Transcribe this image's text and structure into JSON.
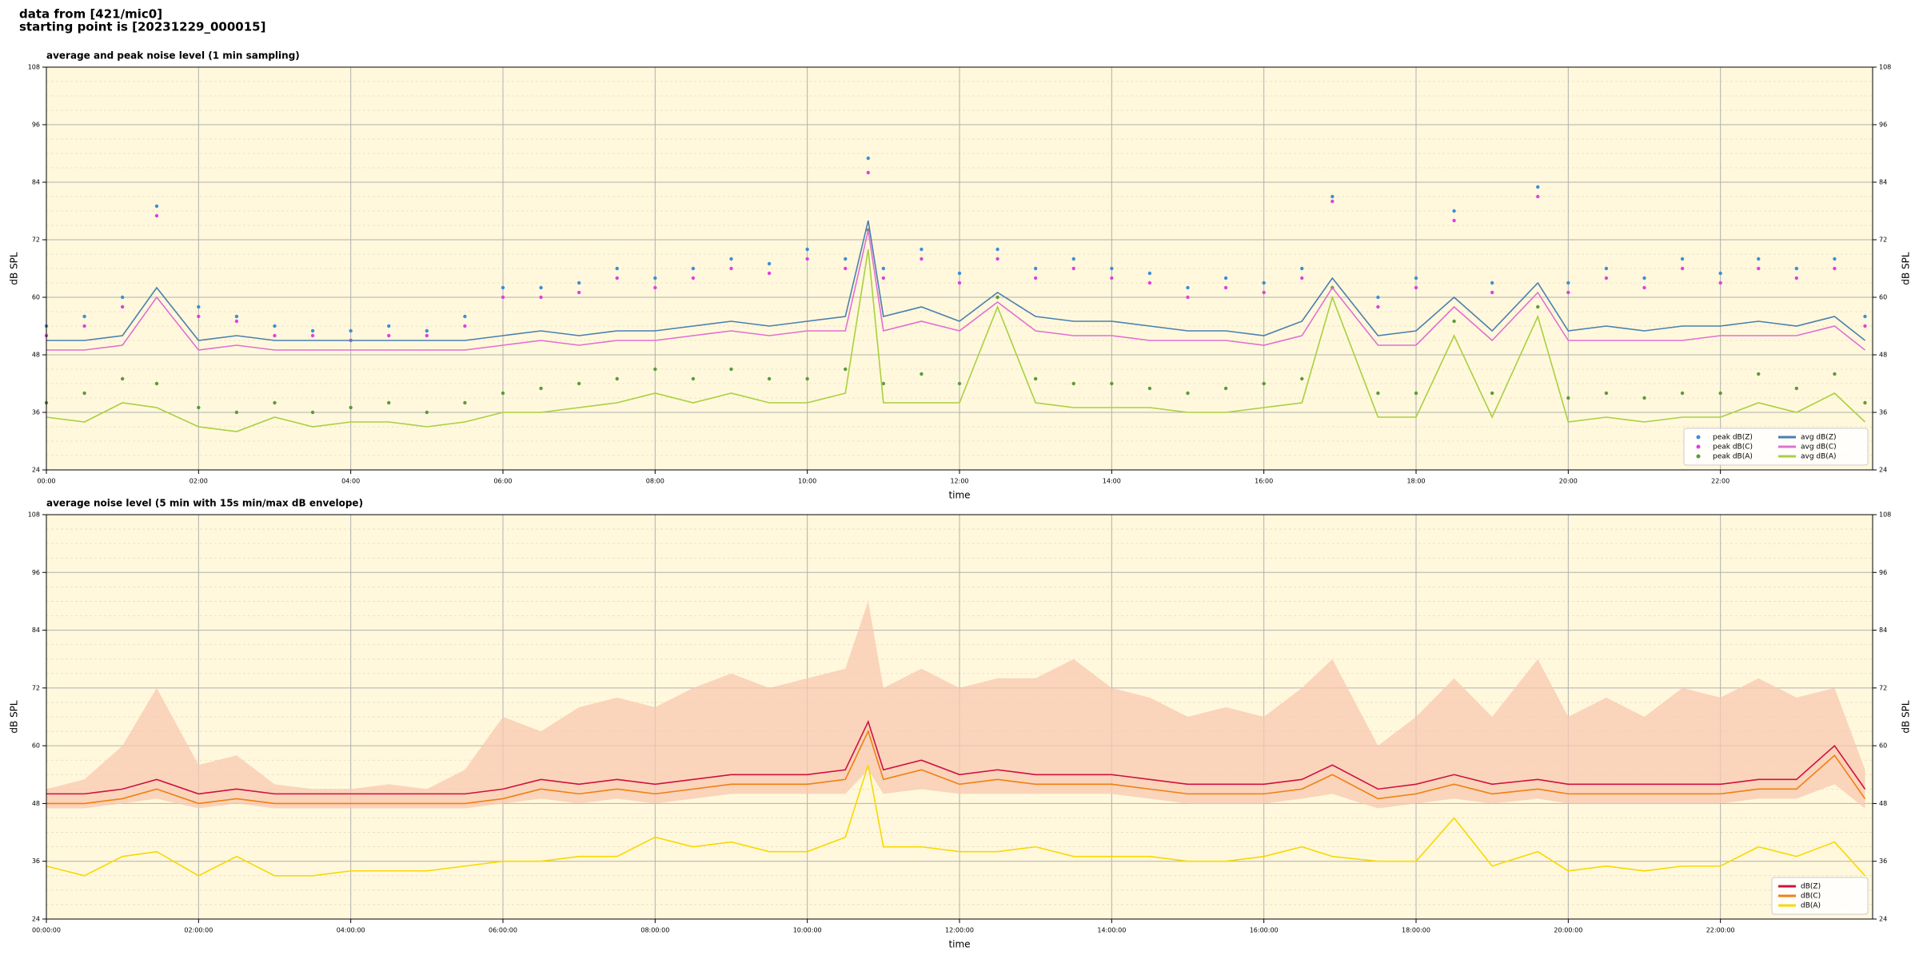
{
  "header": {
    "line1": "data from [421/mic0]",
    "line2": "starting point is [20231229_000015]"
  },
  "chart_data": [
    {
      "type": "line",
      "title": "average and peak noise level (1 min sampling)",
      "xlabel": "time",
      "ylabel": "dB SPL",
      "y2label": "dB SPL",
      "xlim": [
        0,
        24
      ],
      "ylim": [
        24,
        108
      ],
      "y2lim": [
        24,
        108
      ],
      "xticks": [
        {
          "value": 0,
          "label": "00:00"
        },
        {
          "value": 2,
          "label": "02:00"
        },
        {
          "value": 4,
          "label": "04:00"
        },
        {
          "value": 6,
          "label": "06:00"
        },
        {
          "value": 8,
          "label": "08:00"
        },
        {
          "value": 10,
          "label": "10:00"
        },
        {
          "value": 12,
          "label": "12:00"
        },
        {
          "value": 14,
          "label": "14:00"
        },
        {
          "value": 16,
          "label": "16:00"
        },
        {
          "value": 18,
          "label": "18:00"
        },
        {
          "value": 20,
          "label": "20:00"
        },
        {
          "value": 22,
          "label": "22:00"
        }
      ],
      "yticks": [
        24,
        36,
        48,
        60,
        72,
        84,
        96,
        108
      ],
      "y2ticks": [
        24,
        36,
        48,
        60,
        72,
        84,
        96,
        108
      ],
      "yminorticks": [
        27,
        30,
        33,
        39,
        42,
        45,
        51,
        54,
        57,
        63,
        66,
        69,
        75,
        78,
        81,
        87,
        90,
        93,
        99,
        102,
        105
      ],
      "grid": true,
      "legend": "lower right",
      "background": "#fff8dc",
      "x": [
        0,
        0.5,
        1,
        1.45,
        2,
        2.5,
        3,
        3.5,
        4,
        4.5,
        5,
        5.5,
        6,
        6.5,
        7,
        7.5,
        8,
        8.5,
        9,
        9.5,
        10,
        10.5,
        10.8,
        11,
        11.5,
        12,
        12.5,
        13,
        13.5,
        14,
        14.5,
        15,
        15.5,
        16,
        16.5,
        16.9,
        17.5,
        18,
        18.5,
        19,
        19.6,
        20,
        20.5,
        21,
        21.5,
        22,
        22.5,
        23,
        23.5,
        23.9
      ],
      "series": [
        {
          "name": "peak dB(Z)",
          "kind": "points",
          "color": "#3a8fd8",
          "values": [
            54,
            56,
            60,
            79,
            58,
            56,
            54,
            53,
            53,
            54,
            53,
            56,
            62,
            62,
            63,
            66,
            64,
            66,
            68,
            67,
            70,
            68,
            89,
            66,
            70,
            65,
            70,
            66,
            68,
            66,
            65,
            62,
            64,
            63,
            66,
            81,
            60,
            64,
            78,
            63,
            83,
            63,
            66,
            64,
            68,
            65,
            68,
            66,
            68,
            56
          ]
        },
        {
          "name": "peak dB(C)",
          "kind": "points",
          "color": "#e040e0",
          "values": [
            52,
            54,
            58,
            77,
            56,
            55,
            52,
            52,
            51,
            52,
            52,
            54,
            60,
            60,
            61,
            64,
            62,
            64,
            66,
            65,
            68,
            66,
            86,
            64,
            68,
            63,
            68,
            64,
            66,
            64,
            63,
            60,
            62,
            61,
            64,
            80,
            58,
            62,
            76,
            61,
            81,
            61,
            64,
            62,
            66,
            63,
            66,
            64,
            66,
            54
          ]
        },
        {
          "name": "peak dB(A)",
          "kind": "points",
          "color": "#5a9a3a",
          "values": [
            38,
            40,
            43,
            42,
            37,
            36,
            38,
            36,
            37,
            38,
            36,
            38,
            40,
            41,
            42,
            43,
            45,
            43,
            45,
            43,
            43,
            45,
            74,
            42,
            44,
            42,
            60,
            43,
            42,
            42,
            41,
            40,
            41,
            42,
            43,
            62,
            40,
            40,
            55,
            40,
            58,
            39,
            40,
            39,
            40,
            40,
            44,
            41,
            44,
            38
          ]
        },
        {
          "name": "avg dB(Z)",
          "kind": "line",
          "color": "#4a7fb0",
          "values": [
            51,
            51,
            52,
            62,
            51,
            52,
            51,
            51,
            51,
            51,
            51,
            51,
            52,
            53,
            52,
            53,
            53,
            54,
            55,
            54,
            55,
            56,
            76,
            56,
            58,
            55,
            61,
            56,
            55,
            55,
            54,
            53,
            53,
            52,
            55,
            64,
            52,
            53,
            60,
            53,
            63,
            53,
            54,
            53,
            54,
            54,
            55,
            54,
            56,
            51
          ]
        },
        {
          "name": "avg dB(C)",
          "kind": "line",
          "color": "#e070d0",
          "values": [
            49,
            49,
            50,
            60,
            49,
            50,
            49,
            49,
            49,
            49,
            49,
            49,
            50,
            51,
            50,
            51,
            51,
            52,
            53,
            52,
            53,
            53,
            74,
            53,
            55,
            53,
            59,
            53,
            52,
            52,
            51,
            51,
            51,
            50,
            52,
            62,
            50,
            50,
            58,
            51,
            61,
            51,
            51,
            51,
            51,
            52,
            52,
            52,
            54,
            49
          ]
        },
        {
          "name": "avg dB(A)",
          "kind": "line",
          "color": "#a8d040",
          "values": [
            35,
            34,
            38,
            37,
            33,
            32,
            35,
            33,
            34,
            34,
            33,
            34,
            36,
            36,
            37,
            38,
            40,
            38,
            40,
            38,
            38,
            40,
            70,
            38,
            38,
            38,
            58,
            38,
            37,
            37,
            37,
            36,
            36,
            37,
            38,
            60,
            35,
            35,
            52,
            35,
            56,
            34,
            35,
            34,
            35,
            35,
            38,
            36,
            40,
            34
          ]
        }
      ]
    },
    {
      "type": "line",
      "title": "average noise level (5 min with 15s min/max dB envelope)",
      "xlabel": "time",
      "ylabel": "dB SPL",
      "y2label": "dB SPL",
      "xlim": [
        0,
        24
      ],
      "ylim": [
        24,
        108
      ],
      "y2lim": [
        24,
        108
      ],
      "xticks": [
        {
          "value": 0,
          "label": "00:00:00"
        },
        {
          "value": 2,
          "label": "02:00:00"
        },
        {
          "value": 4,
          "label": "04:00:00"
        },
        {
          "value": 6,
          "label": "06:00:00"
        },
        {
          "value": 8,
          "label": "08:00:00"
        },
        {
          "value": 10,
          "label": "10:00:00"
        },
        {
          "value": 12,
          "label": "12:00:00"
        },
        {
          "value": 14,
          "label": "14:00:00"
        },
        {
          "value": 16,
          "label": "16:00:00"
        },
        {
          "value": 18,
          "label": "18:00:00"
        },
        {
          "value": 20,
          "label": "20:00:00"
        },
        {
          "value": 22,
          "label": "22:00:00"
        }
      ],
      "yticks": [
        24,
        36,
        48,
        60,
        72,
        84,
        96,
        108
      ],
      "y2ticks": [
        24,
        36,
        48,
        60,
        72,
        84,
        96,
        108
      ],
      "yminorticks": [
        27,
        30,
        33,
        39,
        42,
        45,
        51,
        54,
        57,
        63,
        66,
        69,
        75,
        78,
        81,
        87,
        90,
        93,
        99,
        102,
        105
      ],
      "grid": true,
      "legend": "lower right",
      "background": "#fff8dc",
      "x": [
        0,
        0.5,
        1,
        1.45,
        2,
        2.5,
        3,
        3.5,
        4,
        4.5,
        5,
        5.5,
        6,
        6.5,
        7,
        7.5,
        8,
        8.5,
        9,
        9.5,
        10,
        10.5,
        10.8,
        11,
        11.5,
        12,
        12.5,
        13,
        13.5,
        14,
        14.5,
        15,
        15.5,
        16,
        16.5,
        16.9,
        17.5,
        18,
        18.5,
        19,
        19.6,
        20,
        20.5,
        21,
        21.5,
        22,
        22.5,
        23,
        23.5,
        23.9
      ],
      "envelope": {
        "color": "#f8c8b0",
        "low": [
          47,
          47,
          48,
          49,
          47,
          48,
          47,
          47,
          47,
          47,
          47,
          47,
          48,
          49,
          48,
          49,
          48,
          49,
          50,
          50,
          50,
          50,
          55,
          50,
          51,
          50,
          50,
          50,
          50,
          50,
          49,
          48,
          48,
          48,
          49,
          50,
          47,
          48,
          49,
          48,
          49,
          48,
          48,
          48,
          48,
          48,
          49,
          49,
          52,
          47
        ],
        "high": [
          51,
          53,
          60,
          72,
          56,
          58,
          52,
          51,
          51,
          52,
          51,
          55,
          66,
          63,
          68,
          70,
          68,
          72,
          75,
          72,
          74,
          76,
          90,
          72,
          76,
          72,
          74,
          74,
          78,
          72,
          70,
          66,
          68,
          66,
          72,
          78,
          60,
          66,
          74,
          66,
          78,
          66,
          70,
          66,
          72,
          70,
          74,
          70,
          72,
          55
        ]
      },
      "series": [
        {
          "name": "dB(Z)",
          "kind": "line",
          "color": "#d01040",
          "values": [
            50,
            50,
            51,
            53,
            50,
            51,
            50,
            50,
            50,
            50,
            50,
            50,
            51,
            53,
            52,
            53,
            52,
            53,
            54,
            54,
            54,
            55,
            65,
            55,
            57,
            54,
            55,
            54,
            54,
            54,
            53,
            52,
            52,
            52,
            53,
            56,
            51,
            52,
            54,
            52,
            53,
            52,
            52,
            52,
            52,
            52,
            53,
            53,
            60,
            51
          ]
        },
        {
          "name": "dB(C)",
          "kind": "line",
          "color": "#f08010",
          "values": [
            48,
            48,
            49,
            51,
            48,
            49,
            48,
            48,
            48,
            48,
            48,
            48,
            49,
            51,
            50,
            51,
            50,
            51,
            52,
            52,
            52,
            53,
            63,
            53,
            55,
            52,
            53,
            52,
            52,
            52,
            51,
            50,
            50,
            50,
            51,
            54,
            49,
            50,
            52,
            50,
            51,
            50,
            50,
            50,
            50,
            50,
            51,
            51,
            58,
            49
          ]
        },
        {
          "name": "dB(A)",
          "kind": "line",
          "color": "#f8d800",
          "values": [
            35,
            33,
            37,
            38,
            33,
            37,
            33,
            33,
            34,
            34,
            34,
            35,
            36,
            36,
            37,
            37,
            41,
            39,
            40,
            38,
            38,
            41,
            56,
            39,
            39,
            38,
            38,
            39,
            37,
            37,
            37,
            36,
            36,
            37,
            39,
            37,
            36,
            36,
            45,
            35,
            38,
            34,
            35,
            34,
            35,
            35,
            39,
            37,
            40,
            33
          ]
        }
      ]
    }
  ]
}
